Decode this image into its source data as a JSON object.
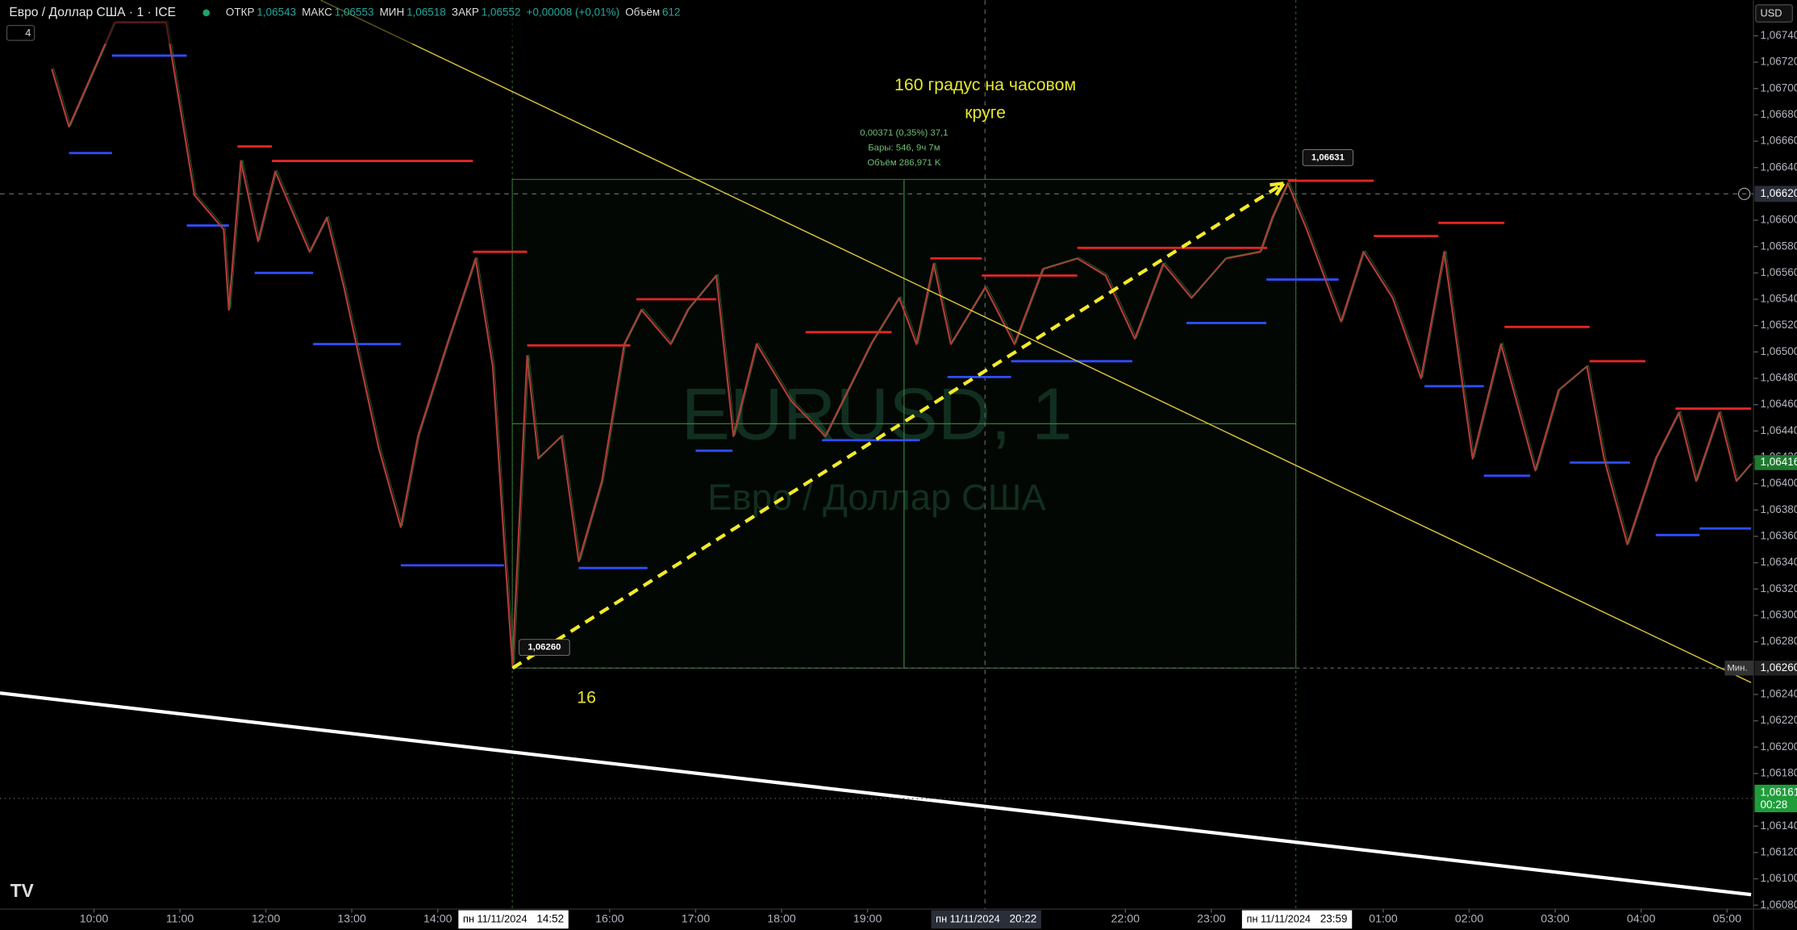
{
  "header": {
    "symbol": "Евро / Доллар США · 1 · ICE",
    "interval_badge": "4",
    "ohlc": [
      {
        "key": "ОТКР",
        "value": "1,06543"
      },
      {
        "key": "МАКС",
        "value": "1,06553"
      },
      {
        "key": "МИН",
        "value": "1,06518"
      },
      {
        "key": "ЗАКР",
        "value": "1,06552"
      }
    ],
    "change": "+0,00008 (+0,01%)",
    "volume_key": "Объём",
    "volume": "612",
    "currency": "USD"
  },
  "watermark": {
    "symbol": "EURUSD, 1",
    "name": "Евро / Доллар США"
  },
  "chart_data": {
    "type": "line",
    "color": "#b23a3a",
    "xlim": [
      8.907,
      29.307
    ],
    "ylim": [
      1.06077,
      1.06767
    ],
    "xticks": [
      {
        "value": 10,
        "label": "10:00"
      },
      {
        "value": 11,
        "label": "11:00"
      },
      {
        "value": 12,
        "label": "12:00"
      },
      {
        "value": 13,
        "label": "13:00"
      },
      {
        "value": 14,
        "label": "14:00"
      },
      {
        "value": 16,
        "label": "16:00"
      },
      {
        "value": 17,
        "label": "17:00"
      },
      {
        "value": 18,
        "label": "18:00"
      },
      {
        "value": 19,
        "label": "19:00"
      },
      {
        "value": 22,
        "label": "22:00"
      },
      {
        "value": 23,
        "label": "23:00"
      },
      {
        "value": 25,
        "label": "01:00"
      },
      {
        "value": 26,
        "label": "02:00"
      },
      {
        "value": 27,
        "label": "03:00"
      },
      {
        "value": 28,
        "label": "04:00"
      },
      {
        "value": 29,
        "label": "05:00"
      }
    ],
    "yticks": [
      {
        "value": 1.0608,
        "label": "1,06080"
      },
      {
        "value": 1.061,
        "label": "1,06100"
      },
      {
        "value": 1.0612,
        "label": "1,06120"
      },
      {
        "value": 1.0614,
        "label": "1,06140"
      },
      {
        "value": 1.0618,
        "label": "1,06180"
      },
      {
        "value": 1.062,
        "label": "1,06200"
      },
      {
        "value": 1.0622,
        "label": "1,06220"
      },
      {
        "value": 1.0624,
        "label": "1,06240"
      },
      {
        "value": 1.0628,
        "label": "1,06280"
      },
      {
        "value": 1.063,
        "label": "1,06300"
      },
      {
        "value": 1.0632,
        "label": "1,06320"
      },
      {
        "value": 1.0634,
        "label": "1,06340"
      },
      {
        "value": 1.0636,
        "label": "1,06360"
      },
      {
        "value": 1.0638,
        "label": "1,06380"
      },
      {
        "value": 1.064,
        "label": "1,06400"
      },
      {
        "value": 1.0642,
        "label": "1,06420"
      },
      {
        "value": 1.0644,
        "label": "1,06440"
      },
      {
        "value": 1.0646,
        "label": "1,06460"
      },
      {
        "value": 1.0648,
        "label": "1,06480"
      },
      {
        "value": 1.065,
        "label": "1,06500"
      },
      {
        "value": 1.0652,
        "label": "1,06520"
      },
      {
        "value": 1.0654,
        "label": "1,06540"
      },
      {
        "value": 1.0656,
        "label": "1,06560"
      },
      {
        "value": 1.0658,
        "label": "1,06580"
      },
      {
        "value": 1.066,
        "label": "1,06600"
      },
      {
        "value": 1.0664,
        "label": "1,06640"
      },
      {
        "value": 1.0666,
        "label": "1,06660"
      },
      {
        "value": 1.0668,
        "label": "1,06680"
      },
      {
        "value": 1.067,
        "label": "1,06700"
      },
      {
        "value": 1.0672,
        "label": "1,06720"
      },
      {
        "value": 1.0674,
        "label": "1,06740"
      }
    ],
    "x": [
      9.51,
      9.71,
      10.24,
      10.84,
      11.04,
      11.17,
      11.51,
      11.57,
      11.71,
      11.91,
      12.11,
      12.51,
      12.71,
      12.91,
      13.31,
      13.57,
      13.77,
      14.11,
      14.44,
      14.64,
      14.77,
      14.87,
      15.04,
      15.17,
      15.44,
      15.64,
      15.91,
      16.17,
      16.37,
      16.71,
      16.91,
      17.24,
      17.44,
      17.71,
      18.11,
      18.51,
      19.04,
      19.37,
      19.57,
      19.77,
      19.97,
      20.37,
      20.71,
      21.04,
      21.44,
      21.77,
      22.11,
      22.44,
      22.77,
      23.17,
      23.57,
      23.71,
      23.89,
      24.11,
      24.51,
      24.77,
      25.11,
      25.44,
      25.71,
      26.04,
      26.37,
      26.77,
      27.04,
      27.37,
      27.57,
      27.84,
      28.17,
      28.44,
      28.64,
      28.91,
      29.11,
      29.28
    ],
    "values": [
      1.06715,
      1.06671,
      1.0675,
      1.0675,
      1.06671,
      1.06619,
      1.06593,
      1.06532,
      1.06645,
      1.06584,
      1.06637,
      1.06576,
      1.06602,
      1.06549,
      1.06428,
      1.06367,
      1.06436,
      1.06506,
      1.06571,
      1.06489,
      1.06358,
      1.06262,
      1.06497,
      1.06419,
      1.06436,
      1.06341,
      1.06402,
      1.06506,
      1.06532,
      1.06506,
      1.06532,
      1.06558,
      1.06436,
      1.06506,
      1.06463,
      1.06436,
      1.06506,
      1.06541,
      1.06506,
      1.06567,
      1.06506,
      1.06549,
      1.06506,
      1.06563,
      1.06571,
      1.06558,
      1.0651,
      1.06567,
      1.06541,
      1.06571,
      1.06576,
      1.06602,
      1.06628,
      1.06593,
      1.06523,
      1.06576,
      1.06541,
      1.0648,
      1.06576,
      1.06419,
      1.06506,
      1.0641,
      1.06471,
      1.06489,
      1.06419,
      1.06354,
      1.06419,
      1.06454,
      1.06402,
      1.06454,
      1.06402,
      1.06415
    ],
    "levels": [
      {
        "color": "#e32626",
        "items": [
          {
            "start": 11.67,
            "end": 12.07,
            "price": 1.06656
          },
          {
            "start": 12.07,
            "end": 14.41,
            "price": 1.06645
          },
          {
            "start": 14.41,
            "end": 15.04,
            "price": 1.06576
          },
          {
            "start": 15.04,
            "end": 16.24,
            "price": 1.06505
          },
          {
            "start": 16.31,
            "end": 17.24,
            "price": 1.0654
          },
          {
            "start": 18.28,
            "end": 19.28,
            "price": 1.06515
          },
          {
            "start": 19.73,
            "end": 20.33,
            "price": 1.06571
          },
          {
            "start": 20.33,
            "end": 21.44,
            "price": 1.06558
          },
          {
            "start": 21.44,
            "end": 23.65,
            "price": 1.06579
          },
          {
            "start": 23.89,
            "end": 24.89,
            "price": 1.0663
          },
          {
            "start": 24.89,
            "end": 25.64,
            "price": 1.06588
          },
          {
            "start": 25.64,
            "end": 26.41,
            "price": 1.06598
          },
          {
            "start": 26.41,
            "end": 27.4,
            "price": 1.06519
          },
          {
            "start": 27.4,
            "end": 28.05,
            "price": 1.06493
          },
          {
            "start": 28.4,
            "end": 29.28,
            "price": 1.06457
          }
        ]
      },
      {
        "color": "#2f4dff",
        "items": [
          {
            "start": 9.71,
            "end": 10.21,
            "price": 1.06651
          },
          {
            "start": 10.21,
            "end": 11.08,
            "price": 1.06725
          },
          {
            "start": 11.08,
            "end": 11.57,
            "price": 1.06596
          },
          {
            "start": 11.87,
            "end": 12.55,
            "price": 1.0656
          },
          {
            "start": 12.55,
            "end": 13.57,
            "price": 1.06506
          },
          {
            "start": 13.57,
            "end": 14.77,
            "price": 1.06338
          },
          {
            "start": 15.64,
            "end": 16.44,
            "price": 1.06336
          },
          {
            "start": 17.0,
            "end": 17.43,
            "price": 1.06425
          },
          {
            "start": 18.47,
            "end": 19.61,
            "price": 1.06433
          },
          {
            "start": 19.93,
            "end": 20.67,
            "price": 1.06481
          },
          {
            "start": 20.67,
            "end": 22.08,
            "price": 1.06493
          },
          {
            "start": 22.71,
            "end": 23.64,
            "price": 1.06522
          },
          {
            "start": 23.64,
            "end": 24.48,
            "price": 1.06555
          },
          {
            "start": 25.48,
            "end": 26.17,
            "price": 1.06474
          },
          {
            "start": 26.17,
            "end": 26.71,
            "price": 1.06406
          },
          {
            "start": 27.17,
            "end": 27.87,
            "price": 1.06416
          },
          {
            "start": 28.17,
            "end": 28.68,
            "price": 1.06361
          },
          {
            "start": 28.68,
            "end": 29.28,
            "price": 1.06366
          }
        ]
      }
    ],
    "trend_lines": [
      {
        "color": "#d9c63a",
        "width": 1,
        "x": [
          12.64,
          29.28
        ],
        "y": [
          1.06767,
          1.06249
        ]
      },
      {
        "color": "#ffffff",
        "width": 3,
        "x": [
          8.907,
          29.28
        ],
        "y": [
          1.06241,
          1.06088
        ]
      }
    ],
    "arrow": {
      "color": "#f2ea2a",
      "x": [
        14.87,
        23.84
      ],
      "y": [
        1.0626,
        1.06628
      ]
    },
    "measure": {
      "x": [
        14.867,
        23.983
      ],
      "y": [
        1.0626,
        1.06631
      ],
      "start_label": "1,06260",
      "end_label": "1,06631",
      "stats": [
        "0,00371 (0,35%) 37,1",
        "Бары: 546, 9ч 7м",
        "Объём 286,971 K"
      ]
    },
    "annotations": [
      {
        "text": "160 градус на часовом",
        "x": 20.37,
        "y": 1.06702
      },
      {
        "text": "круге",
        "x": 20.37,
        "y": 1.06681
      },
      {
        "text": "16",
        "x": 15.73,
        "y": 1.06237
      }
    ],
    "crosshair": {
      "price": {
        "value": 1.0662,
        "label": "1,06620"
      },
      "time": {
        "value": 20.367,
        "date": "пн 11/11/2024",
        "time": "20:22"
      }
    },
    "time_markers": [
      {
        "value": 14.867,
        "date": "пн 11/11/2024",
        "time": "14:52"
      },
      {
        "value": 23.983,
        "date": "пн 11/11/2024",
        "time": "23:59"
      }
    ],
    "price_badges": [
      {
        "value": 1.06416,
        "label": "1,06416",
        "color": "#1e7a2e"
      },
      {
        "value": 1.0626,
        "label": "1,06260",
        "tag": "Мин.",
        "color": "#222"
      },
      {
        "value": 1.06161,
        "label": "1,06161",
        "extra": "00:28",
        "color": "#1f9d3a"
      }
    ]
  }
}
